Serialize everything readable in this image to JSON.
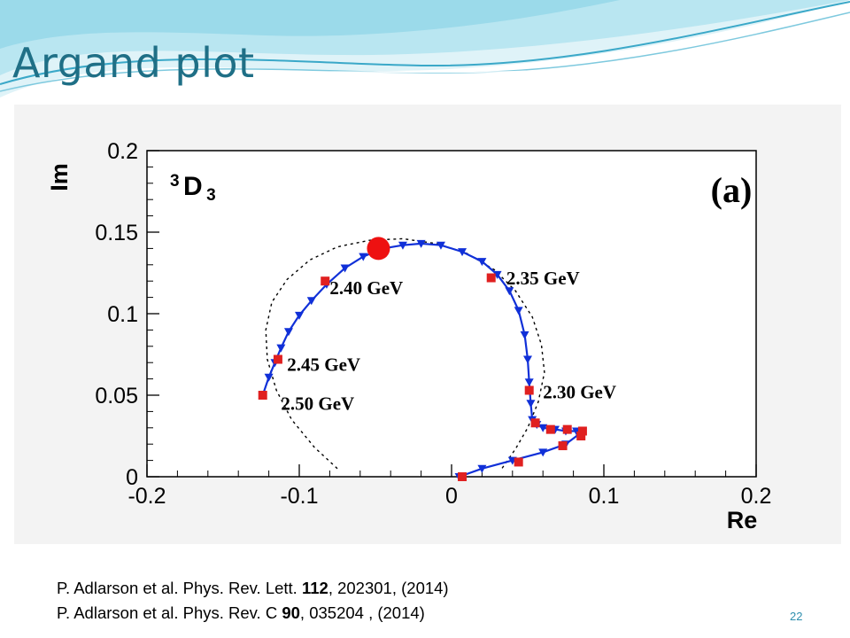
{
  "slide": {
    "title": "Argand plot",
    "number": "22",
    "colors": {
      "title": "#1f6f86",
      "swoosh_light": "#bfe8f2",
      "swoosh_dark": "#3aa8c8",
      "slide_number": "#2f8fae"
    }
  },
  "references": [
    {
      "prefix": "P. Adlarson et al. Phys. Rev. Lett. ",
      "volume": "112",
      "suffix": ", 202301, (2014)"
    },
    {
      "prefix": "P. Adlarson et al. Phys. Rev. C ",
      "volume": "90",
      "suffix": ", 035204 , (2014)"
    }
  ],
  "chart_data": {
    "type": "scatter",
    "xlabel": "Re",
    "ylabel": "Im",
    "xlim": [
      -0.2,
      0.2
    ],
    "ylim": [
      0,
      0.2
    ],
    "x_ticks": [
      -0.2,
      -0.1,
      0,
      0.1,
      0.2
    ],
    "x_tick_labels": [
      "-0.2",
      "-0.1",
      "0",
      "0.1",
      "0.2"
    ],
    "y_ticks": [
      0,
      0.05,
      0.1,
      0.15,
      0.2
    ],
    "y_tick_labels": [
      "0",
      "0.05",
      "0.1",
      "0.15",
      "0.2"
    ],
    "grid": false,
    "partial_wave": {
      "superscript": "3",
      "letter": "D",
      "subscript": "3"
    },
    "panel_label": "(a)",
    "colors": {
      "trajectory": "#1030d8",
      "energy_marker": "#e02020",
      "pole_marker": "#ee1111",
      "circle": "#000000"
    },
    "series": [
      {
        "style": "line-with-triangles",
        "x": [
          0.005,
          0.02,
          0.04,
          0.06,
          0.075,
          0.085,
          0.082,
          0.075,
          0.068,
          0.06,
          0.056,
          0.053,
          0.052,
          0.051,
          0.05,
          0.048,
          0.044,
          0.038,
          0.03,
          0.02,
          0.007,
          -0.007,
          -0.02,
          -0.032,
          -0.045,
          -0.058,
          -0.07,
          -0.082,
          -0.092,
          -0.1,
          -0.107,
          -0.112,
          -0.116,
          -0.12,
          -0.124
        ],
        "y": [
          0.0,
          0.005,
          0.01,
          0.015,
          0.02,
          0.027,
          0.028,
          0.028,
          0.029,
          0.03,
          0.032,
          0.035,
          0.045,
          0.058,
          0.072,
          0.087,
          0.102,
          0.114,
          0.124,
          0.132,
          0.138,
          0.142,
          0.143,
          0.142,
          0.14,
          0.135,
          0.128,
          0.118,
          0.108,
          0.099,
          0.089,
          0.079,
          0.07,
          0.061,
          0.05
        ]
      },
      {
        "style": "energy-markers",
        "x": [
          0.007,
          0.044,
          0.073,
          0.086,
          0.085,
          0.076,
          0.065,
          0.055,
          0.051,
          0.026,
          -0.083,
          -0.114,
          -0.124
        ],
        "y": [
          0.0,
          0.009,
          0.019,
          0.028,
          0.025,
          0.029,
          0.029,
          0.033,
          0.053,
          0.122,
          0.12,
          0.072,
          0.05
        ]
      },
      {
        "style": "unitarity-circle",
        "x": [
          -0.075,
          -0.09,
          -0.105,
          -0.115,
          -0.121,
          -0.122,
          -0.118,
          -0.108,
          -0.093,
          -0.075,
          -0.054,
          -0.032,
          -0.01,
          0.01,
          0.028,
          0.042,
          0.053,
          0.059,
          0.061,
          0.057,
          0.05,
          0.042,
          0.033
        ],
        "y": [
          0.005,
          0.018,
          0.035,
          0.053,
          0.072,
          0.09,
          0.107,
          0.121,
          0.133,
          0.141,
          0.145,
          0.146,
          0.143,
          0.137,
          0.127,
          0.114,
          0.098,
          0.081,
          0.064,
          0.046,
          0.03,
          0.017,
          0.005
        ]
      }
    ],
    "pole": {
      "x": -0.048,
      "y": 0.14
    },
    "annotations": [
      {
        "text": "2.30 GeV",
        "x": 0.06,
        "y": 0.048
      },
      {
        "text": "2.35 GeV",
        "x": 0.036,
        "y": 0.118
      },
      {
        "text": "2.40 GeV",
        "x": -0.08,
        "y": 0.112
      },
      {
        "text": "2.45 GeV",
        "x": -0.108,
        "y": 0.065
      },
      {
        "text": "2.50 GeV",
        "x": -0.112,
        "y": 0.041
      }
    ]
  }
}
